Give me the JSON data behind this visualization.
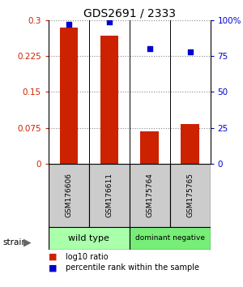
{
  "title": "GDS2691 / 2333",
  "samples": [
    "GSM176606",
    "GSM176611",
    "GSM175764",
    "GSM175765"
  ],
  "log10_ratio": [
    0.285,
    0.268,
    0.068,
    0.082
  ],
  "percentile_rank": [
    97,
    99,
    80,
    78
  ],
  "bar_color": "#cc2200",
  "dot_color": "#0000cc",
  "ylim_left": [
    0,
    0.3
  ],
  "ylim_right": [
    0,
    100
  ],
  "yticks_left": [
    0,
    0.075,
    0.15,
    0.225,
    0.3
  ],
  "yticks_right": [
    0,
    25,
    50,
    75,
    100
  ],
  "ytick_labels_left": [
    "0",
    "0.075",
    "0.15",
    "0.225",
    "0.3"
  ],
  "ytick_labels_right": [
    "0",
    "25",
    "50",
    "75",
    "100%"
  ],
  "groups": [
    {
      "label": "wild type",
      "samples": [
        0,
        1
      ],
      "color": "#aaffaa"
    },
    {
      "label": "dominant negative",
      "samples": [
        2,
        3
      ],
      "color": "#77ee77"
    }
  ],
  "strain_label": "strain",
  "legend_items": [
    {
      "label": "log10 ratio",
      "color": "#cc2200"
    },
    {
      "label": "percentile rank within the sample",
      "color": "#0000cc"
    }
  ],
  "grid_color": "#888888",
  "sample_box_color": "#cccccc",
  "bar_width": 0.45,
  "title_fontsize": 10
}
